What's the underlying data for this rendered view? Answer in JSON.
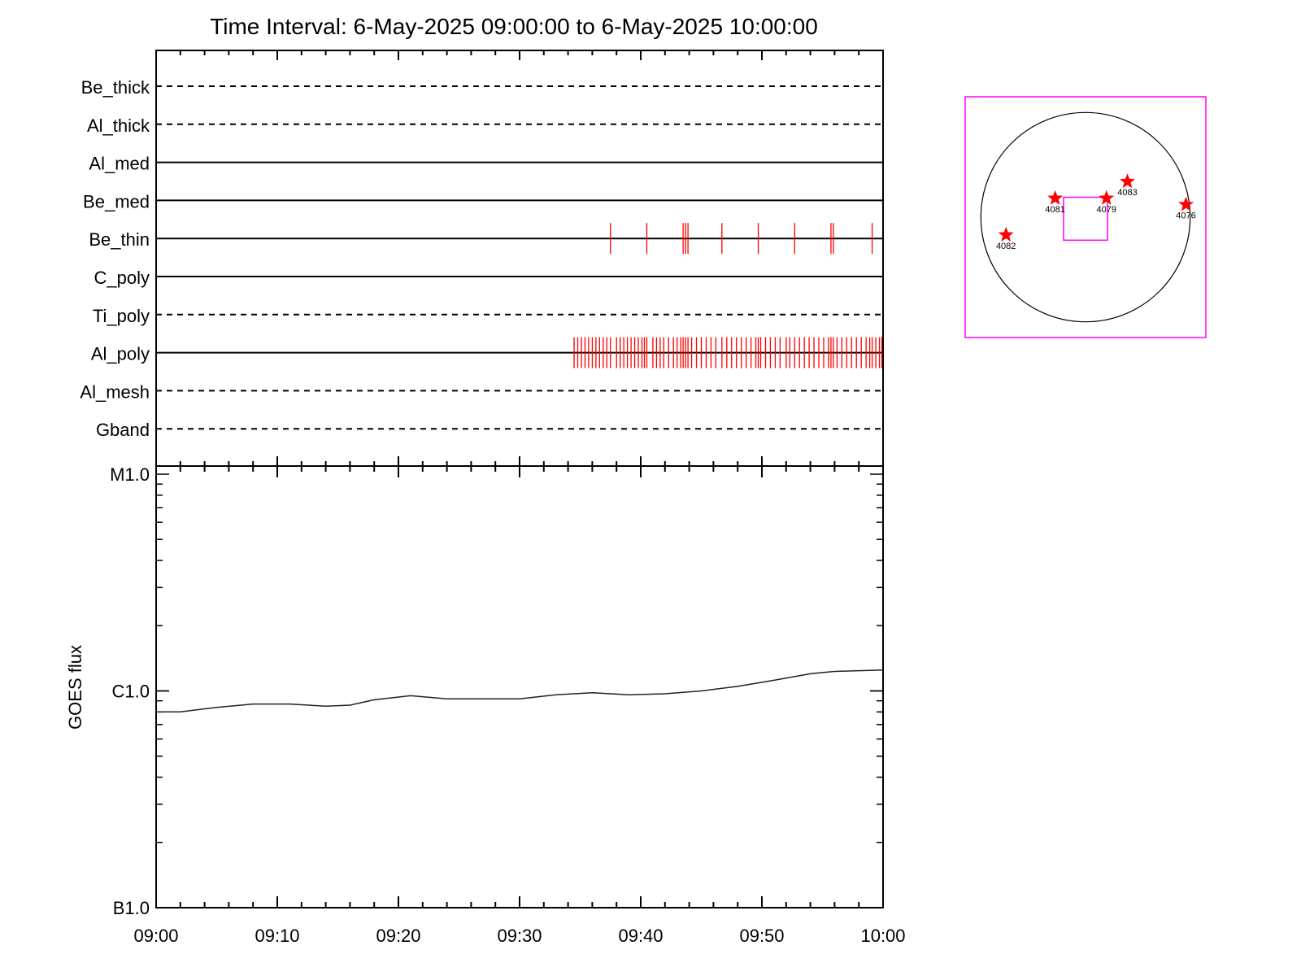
{
  "title": "Time Interval:  6-May-2025 09:00:00 to  6-May-2025 10:00:00",
  "colors": {
    "event_mark": "#ff0000",
    "fov_box": "#ff00ff",
    "stars": "#ff0000",
    "axes": "#000000"
  },
  "chart_data": [
    {
      "type": "timeline",
      "title": "Time Interval:  6-May-2025 09:00:00 to  6-May-2025 10:00:00",
      "x_range_minutes": [
        0,
        60
      ],
      "rows": [
        {
          "label": "Be_thick",
          "style": "dashed",
          "events": []
        },
        {
          "label": "Al_thick",
          "style": "dashed",
          "events": []
        },
        {
          "label": "Al_med",
          "style": "solid",
          "events": []
        },
        {
          "label": "Be_med",
          "style": "solid",
          "events": []
        },
        {
          "label": "Be_thin",
          "style": "solid",
          "events": [
            37.5,
            40.5,
            43.5,
            43.7,
            43.9,
            46.7,
            49.7,
            52.7,
            55.7,
            55.9,
            59.1
          ]
        },
        {
          "label": "C_poly",
          "style": "solid",
          "events": []
        },
        {
          "label": "Ti_poly",
          "style": "dashed",
          "events": []
        },
        {
          "label": "Al_poly",
          "style": "solid",
          "events": [
            34.5,
            34.8,
            35.1,
            35.4,
            35.7,
            36.0,
            36.3,
            36.6,
            36.9,
            37.2,
            37.5,
            38.0,
            38.3,
            38.6,
            38.9,
            39.2,
            39.5,
            39.8,
            40.1,
            40.3,
            40.5,
            41.0,
            41.3,
            41.6,
            41.9,
            42.3,
            42.7,
            43.0,
            43.3,
            43.5,
            43.7,
            43.9,
            44.2,
            44.6,
            45.0,
            45.4,
            45.8,
            46.2,
            46.7,
            47.1,
            47.5,
            47.9,
            48.3,
            48.7,
            49.1,
            49.5,
            49.7,
            49.9,
            50.3,
            50.7,
            51.1,
            51.5,
            52.0,
            52.3,
            52.7,
            53.1,
            53.5,
            53.9,
            54.3,
            54.7,
            55.1,
            55.5,
            55.7,
            55.9,
            56.2,
            56.6,
            57.0,
            57.4,
            57.8,
            58.2,
            58.6,
            58.9,
            59.1,
            59.4,
            59.7,
            59.9
          ]
        },
        {
          "label": "Al_mesh",
          "style": "dashed",
          "events": []
        },
        {
          "label": "Gband",
          "style": "dashed",
          "events": []
        }
      ]
    },
    {
      "type": "line",
      "ylabel": "GOES flux",
      "yscale": "log",
      "ylim": [
        1e-07,
        1e-05
      ],
      "ytick_values": [
        1e-07,
        1e-06,
        1e-05
      ],
      "ytick_labels": [
        "B1.0",
        "C1.0",
        "M1.0"
      ],
      "xlabel": "",
      "x_range_minutes": [
        0,
        60
      ],
      "xtick_minutes": [
        0,
        10,
        20,
        30,
        40,
        50,
        60
      ],
      "xtick_labels": [
        "09:00",
        "09:10",
        "09:20",
        "09:30",
        "09:40",
        "09:50",
        "10:00"
      ],
      "series": [
        {
          "x": [
            0,
            2,
            5,
            8,
            11,
            14,
            16,
            18,
            21,
            24,
            27,
            30,
            33,
            36,
            39,
            42,
            45,
            48,
            51,
            54,
            56,
            58,
            60
          ],
          "y": [
            8e-07,
            8e-07,
            8.4e-07,
            8.7e-07,
            8.7e-07,
            8.5e-07,
            8.6e-07,
            9.1e-07,
            9.5e-07,
            9.2e-07,
            9.2e-07,
            9.2e-07,
            9.6e-07,
            9.8e-07,
            9.6e-07,
            9.7e-07,
            1e-06,
            1.05e-06,
            1.12e-06,
            1.2e-06,
            1.23e-06,
            1.24e-06,
            1.25e-06
          ]
        }
      ]
    },
    {
      "type": "scatter",
      "name": "sun_map",
      "x_range": [
        -1.15,
        1.15
      ],
      "y_range": [
        -1.15,
        1.15
      ],
      "sun_radius": 1.0,
      "fov_box": {
        "x": [
          -0.21,
          0.21
        ],
        "y": [
          -0.22,
          0.19
        ]
      },
      "points": [
        {
          "label": "4081",
          "x": -0.29,
          "y": 0.18
        },
        {
          "label": "4079",
          "x": 0.2,
          "y": 0.18
        },
        {
          "label": "4083",
          "x": 0.4,
          "y": 0.34
        },
        {
          "label": "4076",
          "x": 0.96,
          "y": 0.12
        },
        {
          "label": "4082",
          "x": -0.76,
          "y": -0.17
        }
      ]
    }
  ]
}
